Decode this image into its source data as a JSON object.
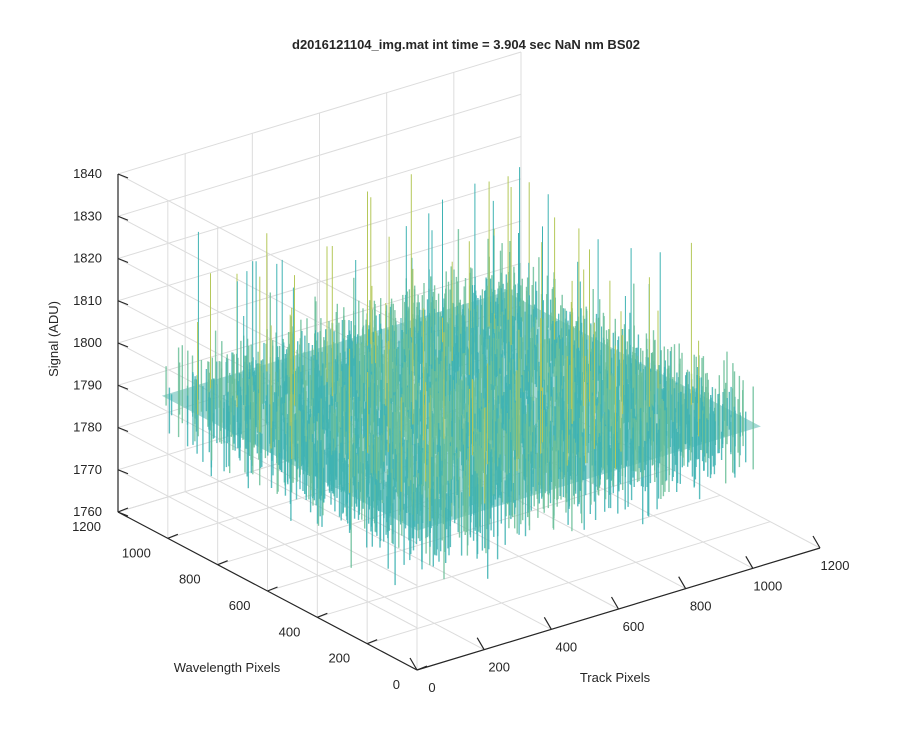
{
  "chart_data": {
    "type": "surface",
    "title": "d2016121104_img.mat int time = 3.904 sec  NaN nm BS02",
    "xlabel": "Track Pixels",
    "ylabel": "Wavelength Pixels",
    "zlabel": "Signal (ADU)",
    "xlim": [
      0,
      1200
    ],
    "ylim": [
      0,
      1200
    ],
    "zlim": [
      1760,
      1840
    ],
    "x_ticks": [
      0,
      200,
      400,
      600,
      800,
      1000,
      1200
    ],
    "y_ticks": [
      0,
      200,
      400,
      600,
      800,
      1000,
      1200
    ],
    "z_ticks": [
      1760,
      1770,
      1780,
      1790,
      1800,
      1810,
      1820,
      1830,
      1840
    ],
    "surface_extent": {
      "track_pixels": [
        0,
        1024
      ],
      "wavelength_pixels": [
        0,
        1024
      ]
    },
    "signal_mean": 1793,
    "signal_noise_range": [
      1762,
      1838
    ],
    "colormap": [
      "#0072bd",
      "#1a90c8",
      "#3fb3b3",
      "#6cc09a",
      "#b5c85a",
      "#e6d13a"
    ],
    "grid": true,
    "view": "3-D perspective"
  }
}
